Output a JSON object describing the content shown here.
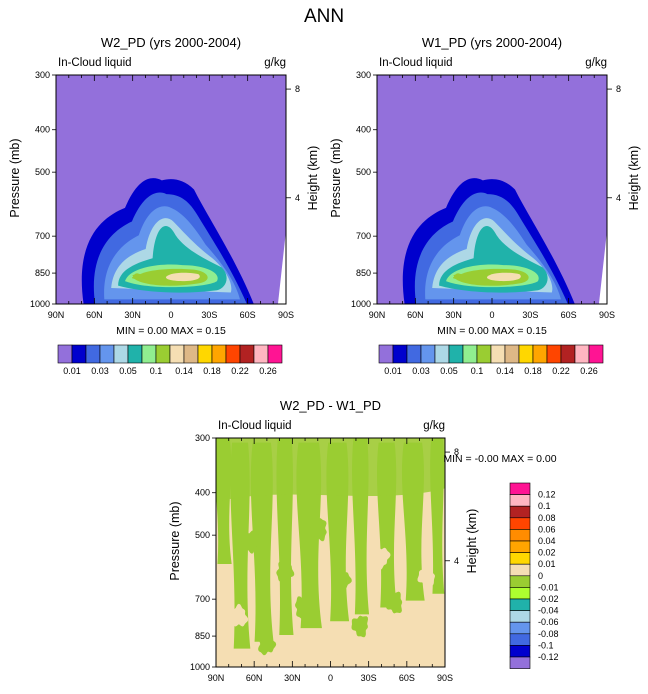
{
  "figure": {
    "title": "ANN"
  },
  "colors": {
    "main": [
      "#9370db",
      "#0000cd",
      "#4169e1",
      "#6495ed",
      "#add8e6",
      "#20b2aa",
      "#90ee90",
      "#9acd32",
      "#f5deb3",
      "#deb887",
      "#ffd700",
      "#ffa500",
      "#ff4500",
      "#b22222",
      "#ffb6c1",
      "#ff1493"
    ],
    "diff": [
      "#9370db",
      "#0000cd",
      "#4169e1",
      "#6495ed",
      "#add8e6",
      "#20b2aa",
      "#adff2f",
      "#9acd32",
      "#f5deb3",
      "#ffd700",
      "#ffa500",
      "#ff8c00",
      "#ff4500",
      "#b22222",
      "#ffb6c1",
      "#ff1493"
    ]
  },
  "chart_data": [
    {
      "type": "heatmap",
      "title": "W2_PD (yrs 2000-2004)",
      "left_label": "In-Cloud liquid",
      "right_label": "g/kg",
      "ylabel": "Pressure (mb)",
      "ylabel_right": "Height (km)",
      "x_ticks": [
        "90N",
        "60N",
        "30N",
        "0",
        "30S",
        "60S",
        "90S"
      ],
      "x_values": [
        90,
        60,
        30,
        0,
        -30,
        -60,
        -90
      ],
      "y_ticks": [
        "300",
        "400",
        "500",
        "700",
        "850",
        "1000"
      ],
      "y_values": [
        300,
        400,
        500,
        700,
        850,
        1000
      ],
      "height_ticks": [
        "8",
        "4"
      ],
      "height_values": [
        8,
        4
      ],
      "stats": "MIN =   0.00  MAX =   0.15",
      "levels": [
        "0.01",
        "0.03",
        "0.05",
        "0.1",
        "0.14",
        "0.18",
        "0.22",
        "0.26"
      ],
      "peak": 0.15
    },
    {
      "type": "heatmap",
      "title": "W1_PD (yrs 2000-2004)",
      "left_label": "In-Cloud liquid",
      "right_label": "g/kg",
      "ylabel": "Pressure (mb)",
      "ylabel_right": "Height (km)",
      "x_ticks": [
        "90N",
        "60N",
        "30N",
        "0",
        "30S",
        "60S",
        "90S"
      ],
      "x_values": [
        90,
        60,
        30,
        0,
        -30,
        -60,
        -90
      ],
      "y_ticks": [
        "300",
        "400",
        "500",
        "700",
        "850",
        "1000"
      ],
      "y_values": [
        300,
        400,
        500,
        700,
        850,
        1000
      ],
      "height_ticks": [
        "8",
        "4"
      ],
      "height_values": [
        8,
        4
      ],
      "stats": "MIN =   0.00  MAX =   0.15",
      "levels": [
        "0.01",
        "0.03",
        "0.05",
        "0.1",
        "0.14",
        "0.18",
        "0.22",
        "0.26"
      ],
      "peak": 0.15
    },
    {
      "type": "heatmap",
      "title": "W2_PD - W1_PD",
      "left_label": "In-Cloud liquid",
      "right_label": "g/kg",
      "ylabel": "Pressure (mb)",
      "ylabel_right": "Height (km)",
      "x_ticks": [
        "90N",
        "60N",
        "30N",
        "0",
        "30S",
        "60S",
        "90S"
      ],
      "x_values": [
        90,
        60,
        30,
        0,
        -30,
        -60,
        -90
      ],
      "y_ticks": [
        "300",
        "400",
        "500",
        "700",
        "850",
        "1000"
      ],
      "y_values": [
        300,
        400,
        500,
        700,
        850,
        1000
      ],
      "height_ticks": [
        "8",
        "4"
      ],
      "height_values": [
        8,
        4
      ],
      "stats": "MIN =  -0.00  MAX =   0.00",
      "levels": [
        "0.12",
        "0.1",
        "0.08",
        "0.06",
        "0.04",
        "0.02",
        "0.01",
        "0",
        "-0.01",
        "-0.02",
        "-0.04",
        "-0.06",
        "-0.08",
        "-0.1",
        "-0.12"
      ]
    }
  ]
}
